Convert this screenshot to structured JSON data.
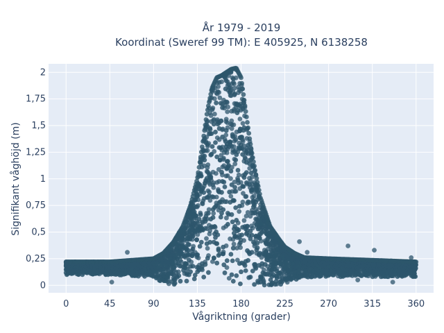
{
  "chart_data": {
    "type": "scatter",
    "title_line1": "År 1979 - 2019",
    "title_line2": "Koordinat (Sweref 99 TM): E 405925, N 6138258",
    "xlabel": "Vågriktning (grader)",
    "ylabel": "Signifikant våghöjd (m)",
    "xlim": [
      -18,
      378
    ],
    "ylim": [
      -0.07,
      2.08
    ],
    "xticks": [
      0,
      45,
      90,
      135,
      180,
      225,
      270,
      315,
      360
    ],
    "xtick_labels": [
      "0",
      "45",
      "90",
      "135",
      "180",
      "225",
      "270",
      "315",
      "360"
    ],
    "yticks": [
      0,
      0.25,
      0.5,
      0.75,
      1,
      1.25,
      1.5,
      1.75,
      2
    ],
    "ytick_labels": [
      "0",
      "0,25",
      "0,5",
      "0,75",
      "1",
      "1,25",
      "1,5",
      "1,75",
      "2"
    ],
    "grid": true,
    "marker_color": "#2d566c",
    "background_color": "#e5ecf6",
    "envelope": {
      "description_values": "upper bound of Hs per direction (data units)",
      "x": [
        0,
        45,
        90,
        100,
        110,
        120,
        128,
        135,
        140,
        145,
        150,
        155,
        160,
        165,
        170,
        175,
        180,
        185,
        190,
        195,
        200,
        210,
        220,
        225,
        235,
        245,
        270,
        300,
        330,
        360
      ],
      "upper": [
        0.22,
        0.22,
        0.25,
        0.3,
        0.4,
        0.55,
        0.75,
        1.0,
        1.3,
        1.62,
        1.85,
        1.95,
        1.97,
        2.0,
        2.03,
        2.04,
        1.95,
        1.62,
        1.3,
        1.05,
        0.82,
        0.55,
        0.42,
        0.36,
        0.3,
        0.26,
        0.25,
        0.24,
        0.23,
        0.22
      ],
      "lower": [
        0.1,
        0.1,
        0.07,
        0.02,
        0.0,
        0.0,
        0.0,
        0.0,
        0.0,
        0.0,
        0.0,
        0.0,
        0.0,
        0.0,
        0.0,
        0.0,
        0.0,
        0.0,
        0.0,
        0.0,
        0.0,
        0.0,
        0.0,
        0.02,
        0.05,
        0.07,
        0.08,
        0.08,
        0.08,
        0.08
      ]
    },
    "outliers": [
      {
        "x": 0,
        "y": 0.22
      },
      {
        "x": 63,
        "y": 0.31
      },
      {
        "x": 47,
        "y": 0.03
      },
      {
        "x": 290,
        "y": 0.37
      },
      {
        "x": 317,
        "y": 0.33
      },
      {
        "x": 336,
        "y": 0.03
      },
      {
        "x": 355,
        "y": 0.26
      },
      {
        "x": 248,
        "y": 0.31
      },
      {
        "x": 240,
        "y": 0.41
      },
      {
        "x": 300,
        "y": 0.05
      }
    ]
  }
}
